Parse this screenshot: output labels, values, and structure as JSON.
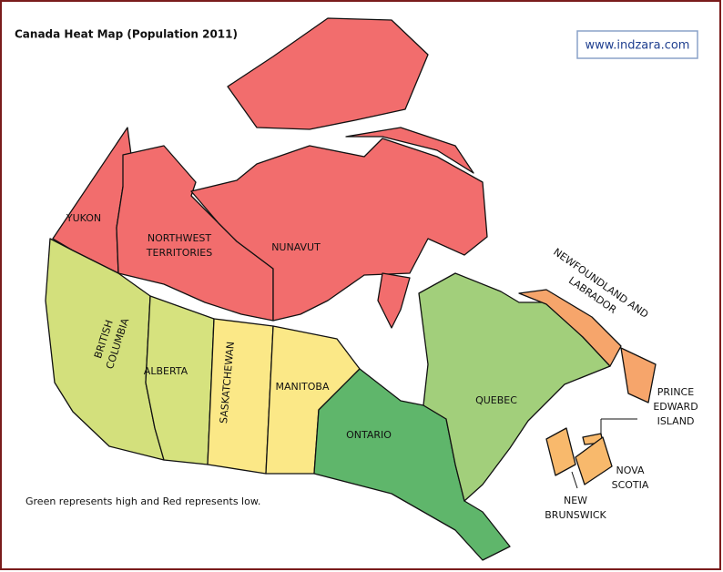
{
  "header": {
    "title": "Canada Heat Map (Population 2011)",
    "url": "www.indzara.com"
  },
  "note": "Green represents high and Red represents low.",
  "regions": [
    {
      "lines": [
        "YUKON"
      ],
      "color": "#f26d6d"
    },
    {
      "lines": [
        "NORTHWEST",
        "TERRITORIES"
      ],
      "color": "#f26d6d"
    },
    {
      "lines": [
        "NUNAVUT"
      ],
      "color": "#f26d6d"
    },
    {
      "lines": [
        "BRITISH",
        "COLUMBIA"
      ],
      "color": "#d3e07c"
    },
    {
      "lines": [
        "ALBERTA"
      ],
      "color": "#d6e27e"
    },
    {
      "lines": [
        "SASKATCHEWAN"
      ],
      "color": "#fbe887"
    },
    {
      "lines": [
        "MANITOBA"
      ],
      "color": "#fbe887"
    },
    {
      "lines": [
        "ONTARIO"
      ],
      "color": "#5fb66b"
    },
    {
      "lines": [
        "QUEBEC"
      ],
      "color": "#a2cf7b"
    },
    {
      "lines": [
        "NEWFOUNDLAND AND",
        "LABRADOR"
      ],
      "color": "#f6a56b"
    },
    {
      "lines": [
        "PRINCE",
        "EDWARD",
        "ISLAND"
      ],
      "color": "#f8b96c"
    },
    {
      "lines": [
        "NOVA",
        "SCOTIA"
      ],
      "color": "#f8b96c"
    },
    {
      "lines": [
        "NEW",
        "BRUNSWICK"
      ],
      "color": "#f8b96c"
    }
  ]
}
